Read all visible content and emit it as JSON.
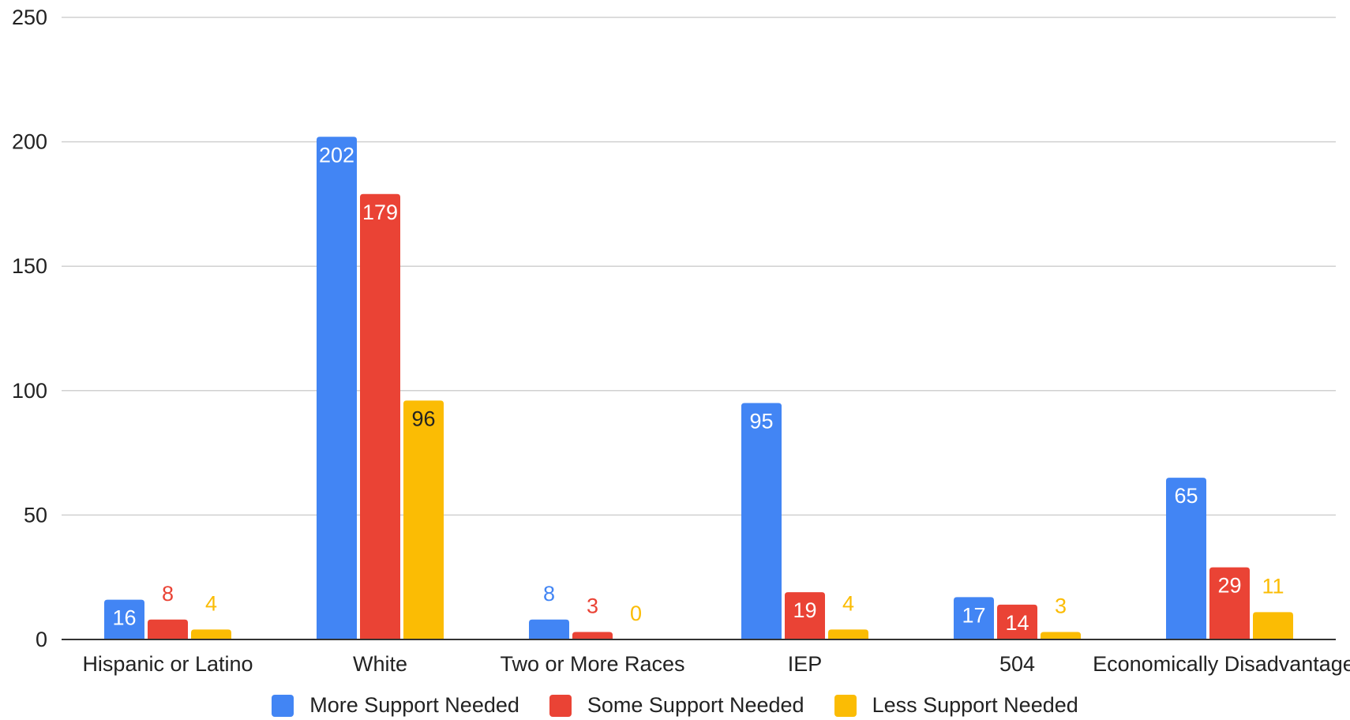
{
  "chart_data": {
    "type": "bar",
    "categories": [
      "Hispanic or Latino",
      "White",
      "Two or More Races",
      "IEP",
      "504",
      "Economically Disadvantaged"
    ],
    "series": [
      {
        "name": "More Support Needed",
        "color": "#4285F4",
        "values": [
          16,
          202,
          8,
          95,
          17,
          65
        ]
      },
      {
        "name": "Some Support Needed",
        "color": "#EA4335",
        "values": [
          8,
          179,
          3,
          19,
          14,
          29
        ]
      },
      {
        "name": "Less Support Needed",
        "color": "#FBBC04",
        "values": [
          4,
          96,
          0,
          4,
          3,
          11
        ]
      }
    ],
    "ylim": [
      0,
      250
    ],
    "yticks": [
      "0",
      "50",
      "100",
      "150",
      "200",
      "250"
    ],
    "grid": true,
    "legend_position": "bottom",
    "title": "",
    "xlabel": "",
    "ylabel": ""
  }
}
